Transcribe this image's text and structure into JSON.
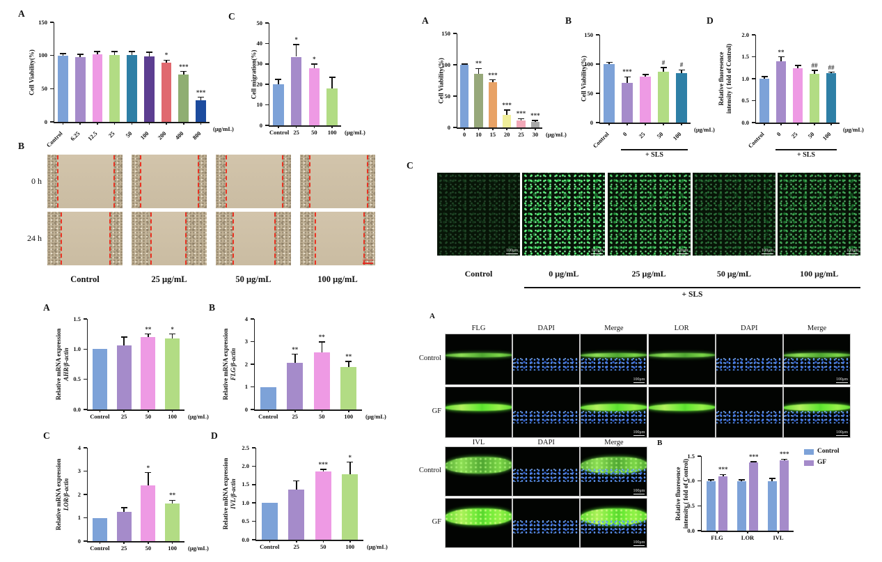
{
  "panel_labels": {
    "tl_a": "A",
    "tl_b": "B",
    "tl_c": "C",
    "tr_a": "A",
    "tr_b": "B",
    "tr_c": "C",
    "tr_d": "D",
    "bl_a": "A",
    "bl_b": "B",
    "bl_c": "C",
    "bl_d": "D",
    "br_a": "A",
    "br_b": "B"
  },
  "chart_data": [
    {
      "id": "tl_a",
      "type": "bar",
      "ylabel_lines": [
        {
          "text": "Cell Viability(%)",
          "italic": false
        }
      ],
      "ylim": [
        0,
        150
      ],
      "yticks": [
        "0",
        "50",
        "100",
        "150"
      ],
      "categories": [
        "Control",
        "6.25",
        "12.5",
        "25",
        "50",
        "100",
        "200",
        "400",
        "800"
      ],
      "values": [
        100,
        98,
        102,
        101,
        101,
        99,
        89,
        71,
        33
      ],
      "errors": [
        3,
        4,
        4,
        5,
        5,
        6,
        4,
        5,
        4
      ],
      "sig": [
        "",
        "",
        "",
        "",
        "",
        "",
        "*",
        "***",
        "***"
      ],
      "colors": [
        "#7da2d8",
        "#a58bca",
        "#ee9ae4",
        "#b2dc84",
        "#2e7fa6",
        "#5c3e91",
        "#e0696f",
        "#8fae72",
        "#1c4b9e"
      ],
      "xunit": "(μg/mL)",
      "rotate_labels": true,
      "grid": false,
      "legend_position": "none"
    },
    {
      "id": "tl_c",
      "type": "bar",
      "ylabel_lines": [
        {
          "text": "Cell migration(%)",
          "italic": false
        }
      ],
      "ylim": [
        0,
        50
      ],
      "yticks": [
        "0",
        "10",
        "20",
        "30",
        "40",
        "50"
      ],
      "categories": [
        "Control",
        "25",
        "50",
        "100"
      ],
      "values": [
        20,
        33.5,
        28,
        18
      ],
      "errors": [
        2.5,
        6,
        2,
        5.5
      ],
      "sig": [
        "",
        "*",
        "*",
        ""
      ],
      "colors": [
        "#7da2d8",
        "#a58bca",
        "#ee9ae4",
        "#b2dc84"
      ],
      "xunit": "(μg/mL)",
      "rotate_labels": false,
      "grid": false,
      "legend_position": "none"
    },
    {
      "id": "tr_a",
      "type": "bar",
      "ylabel_lines": [
        {
          "text": "Cell Viability(%)",
          "italic": false
        }
      ],
      "ylim": [
        0,
        150
      ],
      "yticks": [
        "0",
        "50",
        "100",
        "150"
      ],
      "categories": [
        "0",
        "10",
        "15",
        "20",
        "25",
        "30"
      ],
      "values": [
        100,
        86,
        72,
        20,
        11,
        9
      ],
      "errors": [
        1,
        8,
        4,
        8,
        3,
        2
      ],
      "sig": [
        "",
        "**",
        "***",
        "***",
        "***",
        "***"
      ],
      "colors": [
        "#7da2d8",
        "#97a87a",
        "#e8a266",
        "#f0ee9a",
        "#f2a8b8",
        "#a8a8a8"
      ],
      "xunit": "(μg/mL)",
      "rotate_labels": false,
      "grid": false,
      "legend_position": "none"
    },
    {
      "id": "tr_b",
      "type": "bar",
      "ylabel_lines": [
        {
          "text": "Cell Viability(%)",
          "italic": false
        }
      ],
      "ylim": [
        0,
        150
      ],
      "yticks": [
        "0",
        "50",
        "100",
        "150"
      ],
      "categories": [
        "Control",
        "0",
        "25",
        "50",
        "100"
      ],
      "values": [
        100,
        68,
        79,
        87,
        84
      ],
      "errors": [
        3,
        10,
        3,
        7,
        6
      ],
      "sig": [
        "",
        "***",
        "",
        "#",
        "#"
      ],
      "colors": [
        "#7da2d8",
        "#a58bca",
        "#ee9ae4",
        "#b2dc84",
        "#2e7fa6"
      ],
      "xunit": "(μg/mL)",
      "rotate_labels": true,
      "group_annotation": {
        "label": "+ SLS",
        "from": 1,
        "to": 4
      },
      "grid": false,
      "legend_position": "none"
    },
    {
      "id": "tr_d",
      "type": "bar",
      "ylabel_lines": [
        {
          "text": "Relative fluoresence",
          "italic": false
        },
        {
          "text": "intensity ( fold of Control)",
          "italic": false
        }
      ],
      "ylim": [
        0,
        2
      ],
      "yticks": [
        "0.0",
        "0.5",
        "1.0",
        "1.5",
        "2.0"
      ],
      "categories": [
        "Control",
        "0",
        "25",
        "50",
        "100"
      ],
      "values": [
        1.0,
        1.4,
        1.24,
        1.11,
        1.12
      ],
      "errors": [
        0.05,
        0.1,
        0.06,
        0.08,
        0.03
      ],
      "sig": [
        "",
        "**",
        "",
        "##",
        "##"
      ],
      "colors": [
        "#7da2d8",
        "#a58bca",
        "#ee9ae4",
        "#b2dc84",
        "#2e7fa6"
      ],
      "xunit": "(μg/mL)",
      "rotate_labels": true,
      "group_annotation": {
        "label": "+ SLS",
        "from": 1,
        "to": 4
      },
      "grid": false,
      "legend_position": "none"
    },
    {
      "id": "bl_a",
      "type": "bar",
      "ylabel_lines": [
        {
          "text": "Relative mRNA expression",
          "italic": false
        },
        {
          "text": "AHR/β-actin",
          "italic": true
        }
      ],
      "ylim": [
        0,
        1.5
      ],
      "yticks": [
        "0.0",
        "0.5",
        "1.0",
        "1.5"
      ],
      "categories": [
        "Control",
        "25",
        "50",
        "100"
      ],
      "values": [
        1.0,
        1.06,
        1.2,
        1.18
      ],
      "errors": [
        0,
        0.14,
        0.05,
        0.07
      ],
      "sig": [
        "",
        "",
        "**",
        "*"
      ],
      "colors": [
        "#7da2d8",
        "#a58bca",
        "#ee9ae4",
        "#b2dc84"
      ],
      "xunit": "(μg/mL)",
      "rotate_labels": false,
      "grid": false,
      "legend_position": "none"
    },
    {
      "id": "bl_b",
      "type": "bar",
      "ylabel_lines": [
        {
          "text": "Relative mRNA expression",
          "italic": false
        },
        {
          "text": "FLG/β-actin",
          "italic": true
        }
      ],
      "ylim": [
        0,
        4
      ],
      "yticks": [
        "0",
        "1",
        "2",
        "3",
        "4"
      ],
      "categories": [
        "Control",
        "25",
        "50",
        "100"
      ],
      "values": [
        1.0,
        2.07,
        2.51,
        1.87
      ],
      "errors": [
        0,
        0.37,
        0.48,
        0.25
      ],
      "sig": [
        "",
        "**",
        "**",
        "**"
      ],
      "colors": [
        "#7da2d8",
        "#a58bca",
        "#ee9ae4",
        "#b2dc84"
      ],
      "xunit": "(μg/mL)",
      "rotate_labels": false,
      "grid": false,
      "legend_position": "none"
    },
    {
      "id": "bl_c",
      "type": "bar",
      "ylabel_lines": [
        {
          "text": "Relative mRNA expression",
          "italic": false
        },
        {
          "text": "LOR/β-actin",
          "italic": true
        }
      ],
      "ylim": [
        0,
        4
      ],
      "yticks": [
        "0",
        "1",
        "2",
        "3",
        "4"
      ],
      "categories": [
        "Control",
        "25",
        "50",
        "100"
      ],
      "values": [
        1.0,
        1.25,
        2.4,
        1.61
      ],
      "errors": [
        0,
        0.19,
        0.54,
        0.14
      ],
      "sig": [
        "",
        "",
        "*",
        "**"
      ],
      "colors": [
        "#7da2d8",
        "#a58bca",
        "#ee9ae4",
        "#b2dc84"
      ],
      "xunit": "(μg/mL)",
      "rotate_labels": false,
      "grid": false,
      "legend_position": "none"
    },
    {
      "id": "bl_d",
      "type": "bar",
      "ylabel_lines": [
        {
          "text": "Relative mRNA expression",
          "italic": false
        },
        {
          "text": "IVL/β-actin",
          "italic": true
        }
      ],
      "ylim": [
        0,
        2.5
      ],
      "yticks": [
        "0.0",
        "0.5",
        "1.0",
        "1.5",
        "2.0",
        "2.5"
      ],
      "categories": [
        "Control",
        "25",
        "50",
        "100"
      ],
      "values": [
        1.0,
        1.36,
        1.85,
        1.78
      ],
      "errors": [
        0,
        0.24,
        0.06,
        0.33
      ],
      "sig": [
        "",
        "",
        "***",
        "*"
      ],
      "colors": [
        "#7da2d8",
        "#a58bca",
        "#ee9ae4",
        "#b2dc84"
      ],
      "xunit": "(μg/mL)",
      "rotate_labels": false,
      "grid": false,
      "legend_position": "none"
    },
    {
      "id": "br_b",
      "type": "grouped_bar",
      "ylabel_lines": [
        {
          "text": "Relative fluoresence",
          "italic": false
        },
        {
          "text": "intensity ( fold of Control)",
          "italic": false
        }
      ],
      "ylim": [
        0,
        1.5
      ],
      "yticks": [
        "0.0",
        "0.5",
        "1.0",
        "1.5"
      ],
      "categories": [
        "FLG",
        "LOR",
        "IVL"
      ],
      "series": [
        {
          "name": "Control",
          "color": "#7da2d8",
          "values": [
            1.0,
            1.0,
            1.0
          ],
          "errors": [
            0.02,
            0.02,
            0.05
          ],
          "sig": [
            "",
            "",
            ""
          ]
        },
        {
          "name": "GF",
          "color": "#a58bca",
          "values": [
            1.1,
            1.37,
            1.42
          ],
          "errors": [
            0.03,
            0.02,
            0.02
          ],
          "sig": [
            "***",
            "***",
            "***"
          ]
        }
      ],
      "legend": {
        "entries": [
          {
            "label": "Control",
            "color": "#7da2d8"
          },
          {
            "label": "GF",
            "color": "#a58bca"
          }
        ]
      },
      "rotate_labels": false,
      "grid": false,
      "legend_position": "right"
    }
  ],
  "scratch_assay": {
    "row_labels": [
      "0 h",
      "24 h"
    ],
    "col_labels": [
      "Control",
      "25 μg/mL",
      "50 μg/mL",
      "100 μg/mL"
    ],
    "wound_edges_pct": [
      [
        [
          13,
          88
        ],
        [
          11,
          88
        ],
        [
          13,
          88
        ],
        [
          12,
          89
        ]
      ],
      [
        [
          18,
          82
        ],
        [
          25,
          71
        ],
        [
          22,
          78
        ],
        [
          19,
          84
        ]
      ]
    ],
    "scalebar": "100 μm"
  },
  "sls_fluorescence": {
    "col_labels": [
      "Control",
      "0 μg/mL",
      "25 μg/mL",
      "50 μg/mL",
      "100 μg/mL"
    ],
    "group_label": "+ SLS",
    "scalebar": "100μm",
    "intensity": [
      "low",
      "high",
      "medium-high",
      "low-medium",
      "medium"
    ]
  },
  "if_staining": {
    "block1_headers": [
      "FLG",
      "DAPI",
      "Merge",
      "LOR",
      "DAPI",
      "Merge"
    ],
    "block2_headers": [
      "IVL",
      "DAPI",
      "Merge"
    ],
    "row_labels": [
      "Control",
      "GF"
    ],
    "scalebar": "100μm"
  }
}
